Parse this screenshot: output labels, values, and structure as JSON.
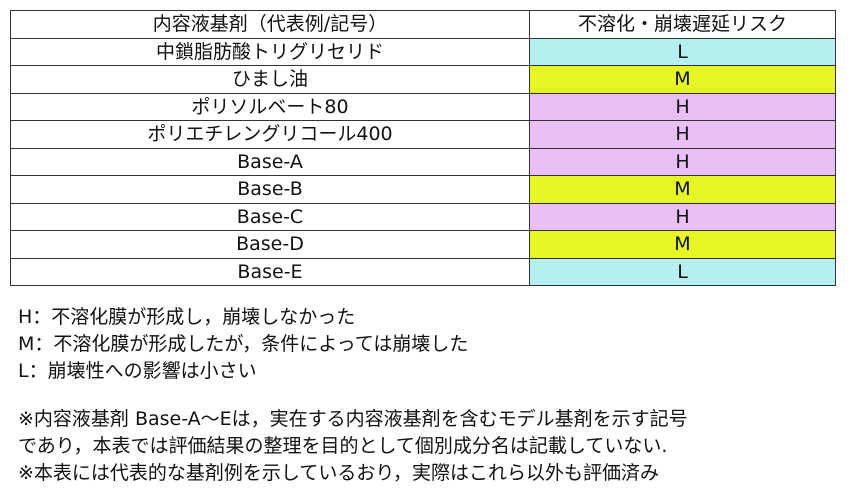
{
  "table": {
    "headers": [
      "内容液基剤（代表例/記号）",
      "不溶化・崩壊遅延リスク"
    ],
    "rows": [
      {
        "base": "中鎖脂肪酸トリグリセリド",
        "risk": "L"
      },
      {
        "base": "ひまし油",
        "risk": "M"
      },
      {
        "base": "ポリソルベート80",
        "risk": "H"
      },
      {
        "base": "ポリエチレングリコール400",
        "risk": "H"
      },
      {
        "base": "Base-A",
        "risk": "H"
      },
      {
        "base": "Base-B",
        "risk": "M"
      },
      {
        "base": "Base-C",
        "risk": "H"
      },
      {
        "base": "Base-D",
        "risk": "M"
      },
      {
        "base": "Base-E",
        "risk": "L"
      }
    ]
  },
  "risk_colors": {
    "H": "#e8c0f5",
    "M": "#e6f524",
    "L": "#b5f0ee"
  },
  "legend": [
    "H：不溶化膜が形成し，崩壊しなかった",
    "M：不溶化膜が形成したが，条件によっては崩壊した",
    "L：崩壊性への影響は小さい"
  ],
  "notes": [
    "※内容液基剤 Base-A～Eは，実在する内容液基剤を含むモデル基剤を示す記号",
    "であり，本表では評価結果の整理を目的として個別成分名は記載していない.",
    "※本表には代表的な基剤例を示しているおり，実際はこれら以外も評価済み"
  ]
}
